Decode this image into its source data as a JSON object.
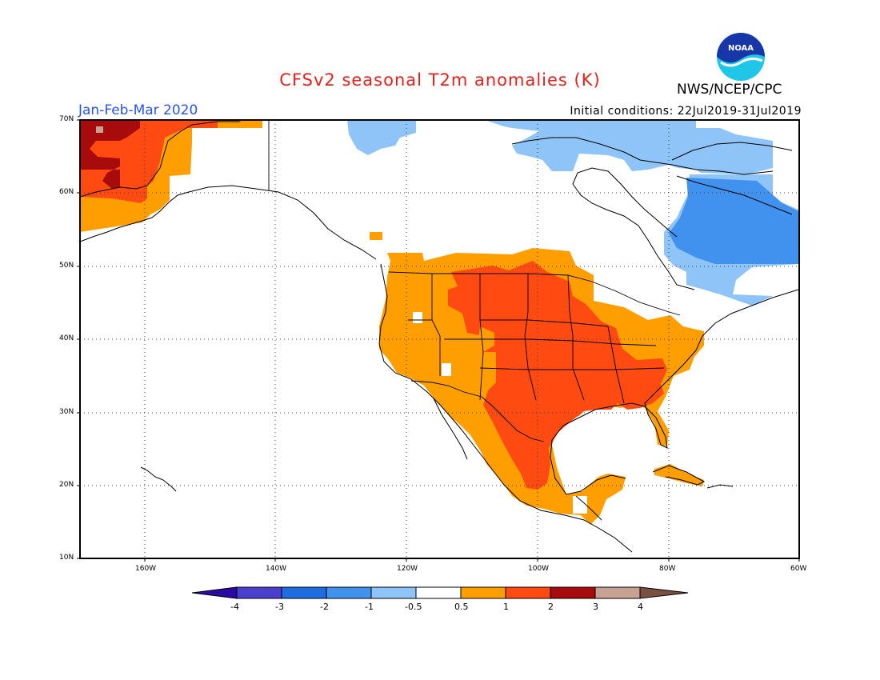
{
  "header": {
    "title": "CFSv2 seasonal T2m anomalies (K)",
    "season": "Jan-Feb-Mar 2020",
    "initial_conditions": "Initial conditions: 22Jul2019-31Jul2019",
    "agency": "NWS/NCEP/CPC",
    "logo_text": "NOAA"
  },
  "axes": {
    "lat_labels": [
      "70N",
      "60N",
      "50N",
      "40N",
      "30N",
      "20N",
      "10N"
    ],
    "lon_labels": [
      "160W",
      "140W",
      "120W",
      "100W",
      "80W",
      "60W"
    ]
  },
  "colorbar": {
    "labels": [
      "-4",
      "-3",
      "-2",
      "-1",
      "-0.5",
      "0.5",
      "1",
      "2",
      "3",
      "4"
    ],
    "colors": [
      "#2b0aa3",
      "#4b3fd0",
      "#1f6be0",
      "#4192ee",
      "#8ec4f7",
      "#ffffff",
      "#ff9e00",
      "#ff4a12",
      "#a80b0b",
      "#c7a292",
      "#7a5044"
    ]
  },
  "map_colors": {
    "light_blue": "#8ec4f7",
    "mid_blue": "#4192ee",
    "orange": "#ff9e00",
    "red_orange": "#ff4a12",
    "dark_red": "#a80b0b"
  }
}
